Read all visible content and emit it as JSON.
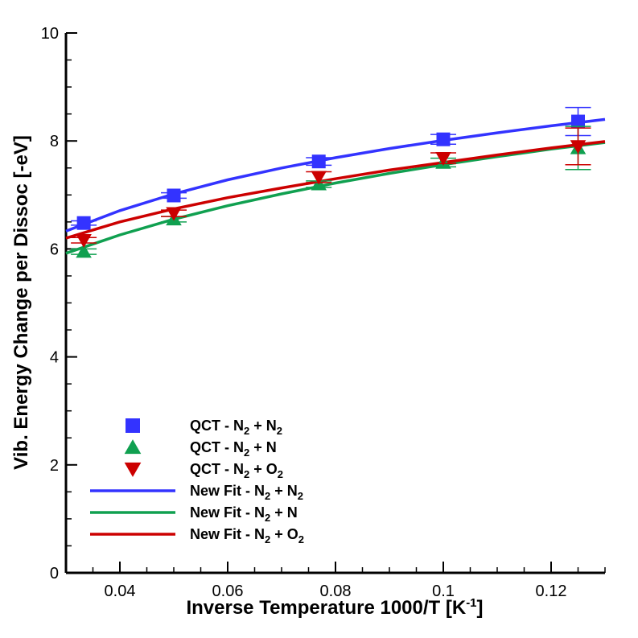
{
  "chart_data": {
    "type": "scatter",
    "title": "",
    "xlabel": "Inverse Temperature 1000/T [K",
    "xlabel_sup": "-1",
    "xlabel_end": "]",
    "ylabel": "Vib. Energy Change per Dissoc [-eV]",
    "xlim": [
      0.03,
      0.13
    ],
    "ylim": [
      0,
      10
    ],
    "x_ticks": [
      0.04,
      0.06,
      0.08,
      0.1,
      0.12
    ],
    "x_tick_labels": [
      "0.04",
      "0.06",
      "0.08",
      "0.1",
      "0.12"
    ],
    "y_ticks": [
      0,
      2,
      4,
      6,
      8,
      10
    ],
    "y_tick_labels": [
      "0",
      "2",
      "4",
      "6",
      "8",
      "10"
    ],
    "x_minor_step": 0.005,
    "y_minor_step": 0.5,
    "grid": false,
    "legend_position": "bottom-left",
    "series": [
      {
        "name": "QCT - N2 + N2",
        "kind": "markers",
        "marker": "square",
        "color": "#3333ff",
        "x": [
          0.0333,
          0.05,
          0.0769,
          0.1,
          0.125
        ],
        "y": [
          6.48,
          6.99,
          7.62,
          8.03,
          8.36
        ],
        "err": [
          0.04,
          0.05,
          0.07,
          0.09,
          0.26
        ]
      },
      {
        "name": "QCT - N2 + N",
        "kind": "markers",
        "marker": "triangle-up",
        "color": "#10a050",
        "x": [
          0.0333,
          0.05,
          0.0769,
          0.1,
          0.125
        ],
        "y": [
          5.95,
          6.55,
          7.2,
          7.6,
          7.87
        ],
        "err": [
          0.05,
          0.05,
          0.06,
          0.08,
          0.4
        ]
      },
      {
        "name": "QCT - N2 + O2",
        "kind": "markers",
        "marker": "triangle-down",
        "color": "#cc0000",
        "x": [
          0.0333,
          0.05,
          0.0769,
          0.1,
          0.125
        ],
        "y": [
          6.16,
          6.66,
          7.33,
          7.68,
          7.9
        ],
        "err": [
          0.05,
          0.06,
          0.1,
          0.1,
          0.34
        ]
      },
      {
        "name": "New Fit - N2 + N2",
        "kind": "line",
        "color": "#3333ff",
        "x": [
          0.03,
          0.04,
          0.05,
          0.06,
          0.07,
          0.08,
          0.09,
          0.1,
          0.11,
          0.12,
          0.13
        ],
        "y": [
          6.33,
          6.71,
          7.02,
          7.28,
          7.5,
          7.69,
          7.86,
          8.01,
          8.15,
          8.28,
          8.4
        ]
      },
      {
        "name": "New Fit - N2 + N",
        "kind": "line",
        "color": "#10a050",
        "x": [
          0.03,
          0.04,
          0.05,
          0.06,
          0.07,
          0.08,
          0.09,
          0.1,
          0.11,
          0.12,
          0.13
        ],
        "y": [
          5.92,
          6.26,
          6.55,
          6.8,
          7.02,
          7.22,
          7.4,
          7.56,
          7.71,
          7.85,
          7.97
        ]
      },
      {
        "name": "New Fit - N2 + O2",
        "kind": "line",
        "color": "#cc0000",
        "x": [
          0.03,
          0.04,
          0.05,
          0.06,
          0.07,
          0.08,
          0.09,
          0.1,
          0.11,
          0.12,
          0.13
        ],
        "y": [
          6.2,
          6.5,
          6.74,
          6.95,
          7.13,
          7.3,
          7.46,
          7.6,
          7.74,
          7.87,
          7.99
        ]
      }
    ]
  },
  "legend": [
    {
      "marker": "square",
      "color": "#3333ff",
      "prefix": "QCT - N",
      "sub1": "2",
      "mid": " + N",
      "sub2": "2",
      "tail": ""
    },
    {
      "marker": "triangle-up",
      "color": "#10a050",
      "prefix": "QCT - N",
      "sub1": "2",
      "mid": " + N",
      "sub2": "",
      "tail": ""
    },
    {
      "marker": "triangle-down",
      "color": "#cc0000",
      "prefix": "QCT - N",
      "sub1": "2",
      "mid": " + O",
      "sub2": "2",
      "tail": ""
    },
    {
      "marker": "line",
      "color": "#3333ff",
      "prefix": "New Fit - N",
      "sub1": "2",
      "mid": " + N",
      "sub2": "2",
      "tail": ""
    },
    {
      "marker": "line",
      "color": "#10a050",
      "prefix": "New Fit - N",
      "sub1": "2",
      "mid": " + N",
      "sub2": "",
      "tail": ""
    },
    {
      "marker": "line",
      "color": "#cc0000",
      "prefix": "New Fit - N",
      "sub1": "2",
      "mid": " + O",
      "sub2": "2",
      "tail": ""
    }
  ]
}
